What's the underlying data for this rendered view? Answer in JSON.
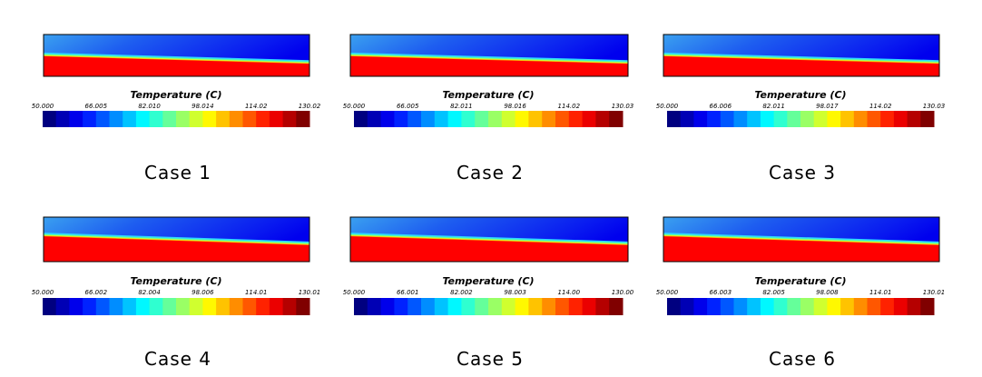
{
  "panels": [
    {
      "label": "Case 1",
      "legend_title": "Temperature (C)",
      "ticks": [
        "50.000",
        "66.005",
        "82.010",
        "98.014",
        "114.02",
        "130.02"
      ]
    },
    {
      "label": "Case 2",
      "legend_title": "Temperature (C)",
      "ticks": [
        "50.000",
        "66.005",
        "82.011",
        "98.016",
        "114.02",
        "130.03"
      ]
    },
    {
      "label": "Case 3",
      "legend_title": "Temperature (C)",
      "ticks": [
        "50.000",
        "66.006",
        "82.011",
        "98.017",
        "114.02",
        "130.03"
      ]
    },
    {
      "label": "Case 4",
      "legend_title": "Temperature (C)",
      "ticks": [
        "50.000",
        "66.002",
        "82.004",
        "98.006",
        "114.01",
        "130.01"
      ]
    },
    {
      "label": "Case 5",
      "legend_title": "Temperature (C)",
      "ticks": [
        "50.000",
        "66.001",
        "82.002",
        "98.003",
        "114.00",
        "130.00"
      ]
    },
    {
      "label": "Case 6",
      "legend_title": "Temperature (C)",
      "ticks": [
        "50.000",
        "66.003",
        "82.005",
        "98.008",
        "114.01",
        "130.01"
      ]
    }
  ]
}
